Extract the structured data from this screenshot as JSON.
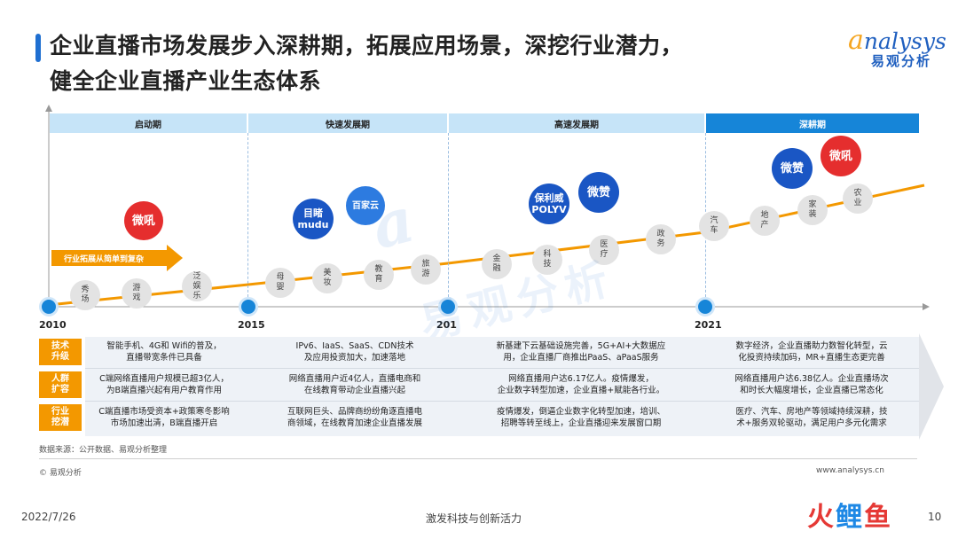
{
  "header": {
    "title_line1": "企业直播市场发展步入深耕期，拓展应用场景，深挖行业潜力，",
    "title_line2": "健全企业直播产业生态体系",
    "logo_en": "nalysys",
    "logo_en_initial": "a",
    "logo_cn": "易观分析"
  },
  "phases": [
    {
      "label": "启动期"
    },
    {
      "label": "快速发展期"
    },
    {
      "label": "高速发展期"
    },
    {
      "label": "深耕期"
    }
  ],
  "years": [
    "2010",
    "2015",
    "201",
    "2021"
  ],
  "expansion_arrow": "行业拓展从简单到复杂",
  "industries": [
    "秀\n场",
    "游\n戏",
    "泛\n娱\n乐",
    "母\n婴",
    "美\n妆",
    "教\n育",
    "旅\n游",
    "金\n融",
    "科\n技",
    "医\n疗",
    "政\n务",
    "汽\n车",
    "地\n产",
    "家\n装",
    "农\n业"
  ],
  "brands": [
    {
      "name": "微吼",
      "icon": "weihou-logo"
    },
    {
      "name": "目睹\nmudu",
      "icon": "mudu-logo"
    },
    {
      "name": "百家云",
      "icon": "baijiayun-logo"
    },
    {
      "name": "保利威\nPOLYV",
      "icon": "polyv-logo"
    },
    {
      "name": "微赞",
      "icon": "weizan-logo"
    },
    {
      "name": "微赞",
      "icon": "weizan-logo"
    },
    {
      "name": "微吼",
      "icon": "weihou-logo"
    }
  ],
  "table": {
    "rows": [
      {
        "label": "技术\n升级",
        "cells": [
          "智能手机、4G和 Wifi的普及，\n直播带宽条件已具备",
          "IPv6、IaaS、SaaS、CDN技术\n及应用投资加大，加速落地",
          "新基建下云基础设施完善，5G+AI+大数据应\n用，企业直播厂商推出PaaS、aPaaS服务",
          "数字经济，企业直播助力数智化转型，云\n化投资持续加码，MR+直播生态更完善"
        ]
      },
      {
        "label": "人群\n扩容",
        "cells": [
          "C端网络直播用户规模已超3亿人，\n为B端直播兴起有用户教育作用",
          "网络直播用户近4亿人，直播电商和\n在线教育带动企业直播兴起",
          "网络直播用户达6.17亿人。疫情爆发，\n企业数字转型加速，企业直播+赋能各行业。",
          "网络直播用户达6.38亿人。企业直播场次\n和时长大幅度增长，企业直播已常态化"
        ]
      },
      {
        "label": "行业\n挖潜",
        "cells": [
          "C端直播市场受资本+政策寒冬影响\n市场加速出清，B端直播开启",
          "互联网巨头、品牌商纷纷角逐直播电\n商领域，在线教育加速企业直播发展",
          "疫情爆发，倒逼企业数字化转型加速，培训、\n招聘等转至线上，企业直播迎来发展窗口期",
          "医疗、汽车、房地产等领域持续深耕，技\n术+服务双轮驱动，满足用户多元化需求"
        ]
      }
    ]
  },
  "source": "数据来源：公开数据、易观分析整理",
  "copyright": "© 易观分析",
  "url": "www.analysys.cn",
  "date": "2022/7/26",
  "footer_slogan": "激发科技与创新活力",
  "page_number": "10",
  "corner_mark": {
    "part1": "火",
    "part2": "鲤",
    "part3": "鱼"
  },
  "colors": {
    "accent_blue": "#1685d8",
    "accent_orange": "#f39800",
    "brand_red": "#e52e2e"
  }
}
